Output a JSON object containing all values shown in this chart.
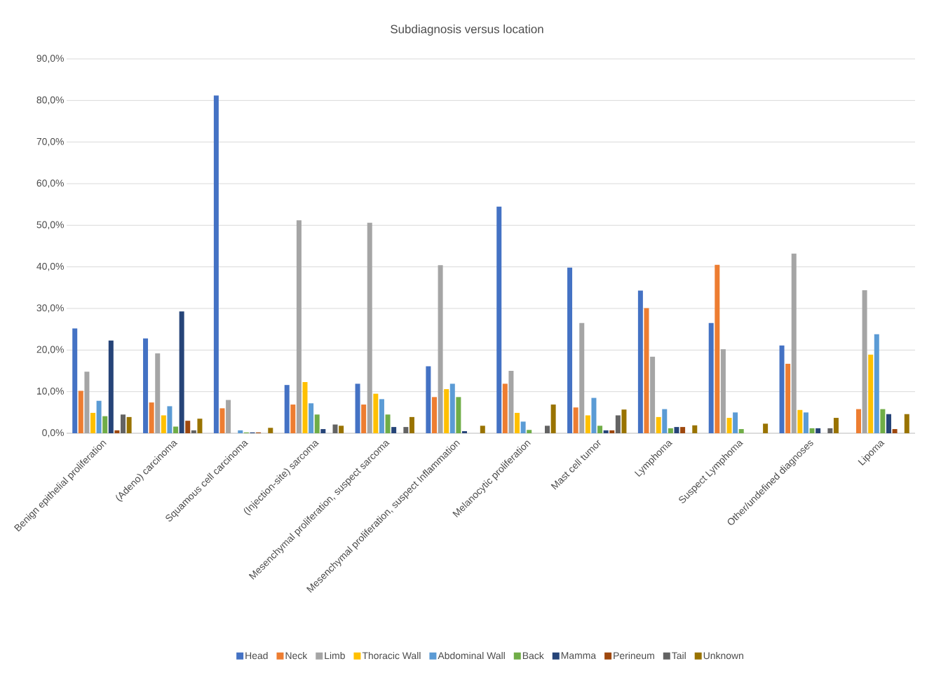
{
  "chart_data": {
    "type": "bar",
    "title": "Subdiagnosis versus location",
    "categories": [
      "Benign epithelial proliferation",
      "(Adeno) carcinoma",
      "Squamous cell carcinoma",
      "(Injection-site) sarcoma",
      "Mesenchymal proliferation, suspect sarcoma",
      "Mesenchymal proliferation, suspect Inflammation",
      "Melanocytic proliferation",
      "Mast cell tumor",
      "Lymphoma",
      "Suspect Lymphoma",
      "Other/undefined diagnoses",
      "Lipoma"
    ],
    "series": [
      {
        "name": "Head",
        "color": "#4472c4",
        "values": [
          25.2,
          22.8,
          81.2,
          11.6,
          11.9,
          16.1,
          54.5,
          39.8,
          34.3,
          26.5,
          21.1,
          null
        ]
      },
      {
        "name": "Neck",
        "color": "#ed7d31",
        "values": [
          10.2,
          7.4,
          6.0,
          6.9,
          6.9,
          8.7,
          11.9,
          6.2,
          30.1,
          40.5,
          16.7,
          5.8
        ]
      },
      {
        "name": "Limb",
        "color": "#a5a5a5",
        "values": [
          14.8,
          19.2,
          8.0,
          51.2,
          50.6,
          40.4,
          15.0,
          26.5,
          18.4,
          20.2,
          43.2,
          34.4
        ]
      },
      {
        "name": "Thoracic Wall",
        "color": "#ffc000",
        "values": [
          4.9,
          4.3,
          null,
          12.3,
          9.5,
          10.6,
          4.9,
          4.3,
          3.9,
          3.7,
          5.6,
          18.9
        ]
      },
      {
        "name": "Abdominal Wall",
        "color": "#5b9bd5",
        "values": [
          7.8,
          6.5,
          0.7,
          7.2,
          8.2,
          11.9,
          2.8,
          8.5,
          5.8,
          5.0,
          5.0,
          23.8
        ]
      },
      {
        "name": "Back",
        "color": "#70ad47",
        "values": [
          4.1,
          1.6,
          0.2,
          4.5,
          4.5,
          8.7,
          0.8,
          1.8,
          1.2,
          1.0,
          1.2,
          5.8
        ]
      },
      {
        "name": "Mamma",
        "color": "#264478",
        "values": [
          22.3,
          29.3,
          0.2,
          1.0,
          1.5,
          0.5,
          null,
          0.7,
          1.5,
          null,
          1.2,
          4.6
        ]
      },
      {
        "name": "Perineum",
        "color": "#9e480e",
        "values": [
          0.7,
          3.0,
          0.2,
          null,
          null,
          null,
          null,
          0.7,
          1.5,
          null,
          null,
          1.0
        ]
      },
      {
        "name": "Tail",
        "color": "#636363",
        "values": [
          4.5,
          0.7,
          null,
          2.1,
          1.5,
          null,
          1.8,
          4.3,
          null,
          null,
          1.2,
          null
        ]
      },
      {
        "name": "Unknown",
        "color": "#997300",
        "values": [
          3.9,
          3.5,
          1.3,
          1.8,
          3.9,
          1.8,
          6.9,
          5.7,
          1.9,
          2.3,
          3.7,
          4.6
        ]
      }
    ],
    "ylim": [
      0,
      90
    ],
    "yticks": [
      {
        "value": 0,
        "label": "0,0%"
      },
      {
        "value": 10,
        "label": "10,0%"
      },
      {
        "value": 20,
        "label": "20,0%"
      },
      {
        "value": 30,
        "label": "30,0%"
      },
      {
        "value": 40,
        "label": "40,0%"
      },
      {
        "value": 50,
        "label": "50,0%"
      },
      {
        "value": 60,
        "label": "60,0%"
      },
      {
        "value": 70,
        "label": "70,0%"
      },
      {
        "value": 80,
        "label": "80,0%"
      },
      {
        "value": 90,
        "label": "90,0%"
      }
    ],
    "grid": "y",
    "legend": "bottom"
  }
}
